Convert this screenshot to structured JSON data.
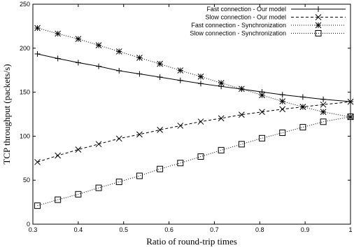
{
  "chart_data": {
    "type": "line",
    "title": "",
    "xlabel": "Ratio of round-trip times",
    "ylabel": "TCP throughput (packets/s)",
    "xlim": [
      0.3,
      1.0
    ],
    "ylim": [
      0,
      250
    ],
    "xticks": [
      "0.3",
      "0.4",
      "0.5",
      "0.6",
      "0.7",
      "0.8",
      "0.9",
      "1"
    ],
    "yticks": [
      "0",
      "50",
      "100",
      "150",
      "200",
      "250"
    ],
    "grid": false,
    "legend_position": "top-right",
    "series": [
      {
        "name": "Fast connection - Our model",
        "marker": "plus",
        "dash": "solid",
        "x": [
          0.31,
          0.355,
          0.4,
          0.445,
          0.49,
          0.535,
          0.58,
          0.625,
          0.67,
          0.715,
          0.76,
          0.805,
          0.85,
          0.895,
          0.94,
          1.0
        ],
        "y": [
          193.5,
          188.3,
          183.6,
          179.4,
          174.4,
          170.8,
          167.1,
          163.4,
          159.8,
          156.6,
          153.5,
          150.3,
          147.1,
          144.5,
          141.9,
          139.3
        ]
      },
      {
        "name": "Slow connection - Our model",
        "marker": "x",
        "dash": "dashed",
        "x": [
          0.31,
          0.355,
          0.4,
          0.445,
          0.49,
          0.535,
          0.58,
          0.625,
          0.67,
          0.715,
          0.76,
          0.805,
          0.85,
          0.895,
          0.94,
          1.0
        ],
        "y": [
          70.6,
          78.0,
          84.8,
          91.0,
          97.3,
          102.0,
          107.2,
          111.9,
          116.6,
          120.3,
          124.4,
          127.6,
          130.7,
          133.3,
          135.9,
          139.1
        ]
      },
      {
        "name": "Fast connection - Synchronization",
        "marker": "star",
        "dash": "dotted",
        "x": [
          0.31,
          0.355,
          0.4,
          0.445,
          0.49,
          0.535,
          0.58,
          0.625,
          0.67,
          0.715,
          0.76,
          0.805,
          0.85,
          0.895,
          0.94,
          1.0
        ],
        "y": [
          222.9,
          216.5,
          210.5,
          203.3,
          196.3,
          189.1,
          182.2,
          174.7,
          167.7,
          160.4,
          153.8,
          146.6,
          139.6,
          133.3,
          127.6,
          121.8
        ]
      },
      {
        "name": "Slow connection - Synchronization",
        "marker": "square",
        "dash": "dotted",
        "x": [
          0.31,
          0.355,
          0.4,
          0.445,
          0.49,
          0.535,
          0.58,
          0.625,
          0.67,
          0.715,
          0.76,
          0.805,
          0.85,
          0.895,
          0.94,
          1.0
        ],
        "y": [
          21.0,
          27.8,
          34.0,
          41.3,
          48.1,
          54.9,
          62.7,
          69.5,
          76.8,
          84.1,
          90.9,
          97.7,
          103.9,
          110.2,
          116.4,
          122.1
        ]
      }
    ]
  }
}
